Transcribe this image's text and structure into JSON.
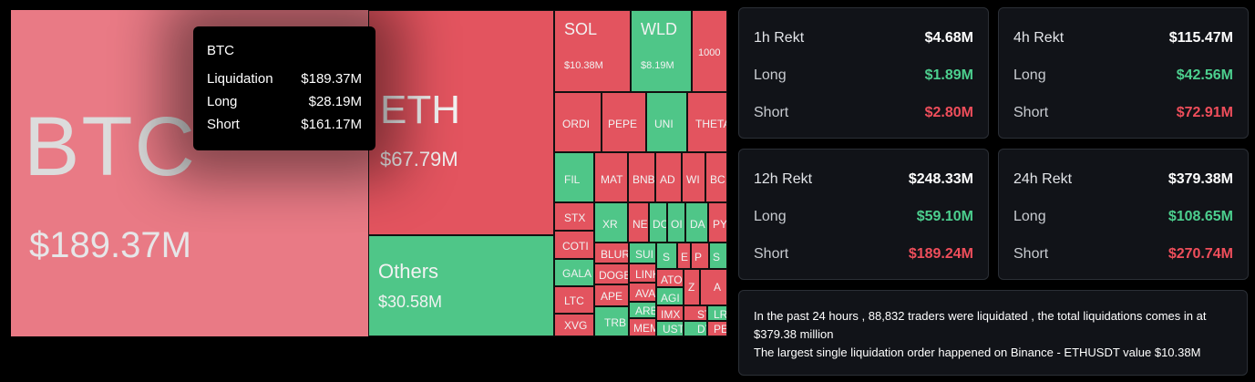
{
  "colors": {
    "long": "#4fc688",
    "short": "#e3545f",
    "btc": "#e97a85",
    "long_text": "#4ccf8e",
    "short_text": "#ef4e5b"
  },
  "chart_data": {
    "type": "treemap",
    "items": [
      {
        "symbol": "BTC",
        "value": "$189.37M",
        "side": "short"
      },
      {
        "symbol": "ETH",
        "value": "$67.79M",
        "side": "short"
      },
      {
        "symbol": "Others",
        "value": "$30.58M",
        "side": "long"
      },
      {
        "symbol": "SOL",
        "value": "$10.38M",
        "side": "short"
      },
      {
        "symbol": "WLD",
        "value": "$8.19M",
        "side": "long"
      },
      {
        "symbol": "1000",
        "value": "",
        "side": "short"
      },
      {
        "symbol": "ORDI",
        "value": "",
        "side": "short"
      },
      {
        "symbol": "PEPE",
        "value": "",
        "side": "short"
      },
      {
        "symbol": "UNI",
        "value": "",
        "side": "long"
      },
      {
        "symbol": "THETA",
        "value": "",
        "side": "short"
      },
      {
        "symbol": "FIL",
        "value": "",
        "side": "long"
      },
      {
        "symbol": "MAT",
        "value": "",
        "side": "short"
      },
      {
        "symbol": "BNB",
        "value": "",
        "side": "short"
      },
      {
        "symbol": "AD",
        "value": "",
        "side": "short"
      },
      {
        "symbol": "WI",
        "value": "",
        "side": "short"
      },
      {
        "symbol": "BC",
        "value": "",
        "side": "short"
      },
      {
        "symbol": "STX",
        "value": "",
        "side": "short"
      },
      {
        "symbol": "XR",
        "value": "",
        "side": "long"
      },
      {
        "symbol": "NE",
        "value": "",
        "side": "short"
      },
      {
        "symbol": "DC",
        "value": "",
        "side": "long"
      },
      {
        "symbol": "OI",
        "value": "",
        "side": "long"
      },
      {
        "symbol": "DA",
        "value": "",
        "side": "long"
      },
      {
        "symbol": "PY",
        "value": "",
        "side": "short"
      },
      {
        "symbol": "COTI",
        "value": "",
        "side": "short"
      },
      {
        "symbol": "BLUR",
        "value": "",
        "side": "short"
      },
      {
        "symbol": "SUI",
        "value": "",
        "side": "long"
      },
      {
        "symbol": "S",
        "value": "",
        "side": "long"
      },
      {
        "symbol": "E",
        "value": "",
        "side": "short"
      },
      {
        "symbol": "P",
        "value": "",
        "side": "short"
      },
      {
        "symbol": "S",
        "value": "",
        "side": "long"
      },
      {
        "symbol": "GALA",
        "value": "",
        "side": "long"
      },
      {
        "symbol": "DOGE",
        "value": "",
        "side": "short"
      },
      {
        "symbol": "LINK",
        "value": "",
        "side": "short"
      },
      {
        "symbol": "ATO",
        "value": "",
        "side": "short"
      },
      {
        "symbol": "AGI",
        "value": "",
        "side": "long"
      },
      {
        "symbol": "Z",
        "value": "",
        "side": "short"
      },
      {
        "symbol": "A",
        "value": "",
        "side": "short"
      },
      {
        "symbol": "LTC",
        "value": "",
        "side": "short"
      },
      {
        "symbol": "APE",
        "value": "",
        "side": "short"
      },
      {
        "symbol": "AVAX",
        "value": "",
        "side": "short"
      },
      {
        "symbol": "ARB",
        "value": "",
        "side": "long"
      },
      {
        "symbol": "IMX",
        "value": "",
        "side": "short"
      },
      {
        "symbol": "ST",
        "value": "",
        "side": "short"
      },
      {
        "symbol": "LR",
        "value": "",
        "side": "long"
      },
      {
        "symbol": "XVG",
        "value": "",
        "side": "short"
      },
      {
        "symbol": "TRB",
        "value": "",
        "side": "long"
      },
      {
        "symbol": "MEM",
        "value": "",
        "side": "short"
      },
      {
        "symbol": "UST",
        "value": "",
        "side": "long"
      },
      {
        "symbol": "DY",
        "value": "",
        "side": "long"
      },
      {
        "symbol": "PE",
        "value": "",
        "side": "short"
      }
    ]
  },
  "tooltip": {
    "title": "BTC",
    "rows": [
      {
        "label": "Liquidation",
        "value": "$189.37M"
      },
      {
        "label": "Long",
        "value": "$28.19M"
      },
      {
        "label": "Short",
        "value": "$161.17M"
      }
    ]
  },
  "cards": [
    {
      "title": "1h Rekt",
      "total": "$4.68M",
      "long_label": "Long",
      "long": "$1.89M",
      "short_label": "Short",
      "short": "$2.80M"
    },
    {
      "title": "4h Rekt",
      "total": "$115.47M",
      "long_label": "Long",
      "long": "$42.56M",
      "short_label": "Short",
      "short": "$72.91M"
    },
    {
      "title": "12h Rekt",
      "total": "$248.33M",
      "long_label": "Long",
      "long": "$59.10M",
      "short_label": "Short",
      "short": "$189.24M"
    },
    {
      "title": "24h Rekt",
      "total": "$379.38M",
      "long_label": "Long",
      "long": "$108.65M",
      "short_label": "Short",
      "short": "$270.74M"
    }
  ],
  "summary": {
    "line1": "In the past 24 hours , 88,832 traders were liquidated , the total liquidations comes in at $379.38 million",
    "line2": "The largest single liquidation order happened on Binance - ETHUSDT value $10.38M"
  }
}
